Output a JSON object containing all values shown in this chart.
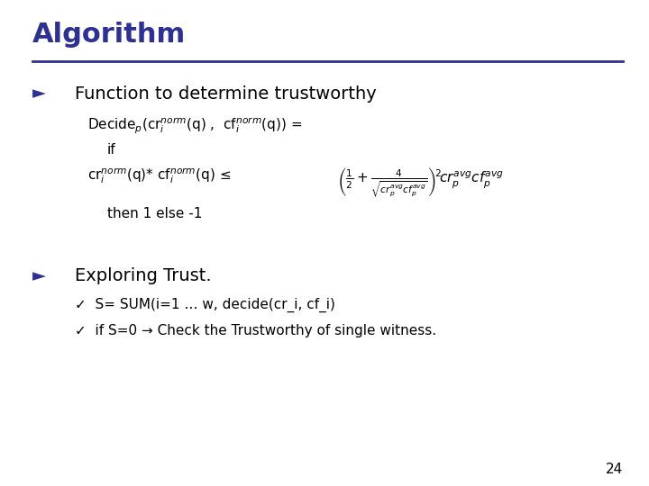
{
  "title": "Algorithm",
  "title_color": "#2E3191",
  "title_fontsize": 22,
  "separator_color": "#2E3191",
  "background_color": "#FFFFFF",
  "bullet1_header": "Function to determine trustworthy",
  "bullet1_fontsize": 14,
  "bullet_marker_color": "#2E3191",
  "bullet_marker": "►",
  "decide_line": "Decide$_p$(cr$_i^{norm}$(q) ,  cf$_i^{norm}$(q)) =",
  "if_line": "if",
  "condition_line": "cr$_i^{norm}$(q)* cf$_i^{norm}$(q) ≤",
  "formula_text": "$\\left(\\frac{1}{2}+\\frac{4}{\\sqrt{cr_p^{avg}cf_p^{avg}}}\\right)^{\\!2}\\!cr_p^{avg}cf_p^{avg}$",
  "then_line": "then 1 else -1",
  "bullet2_header": "Exploring Trust.",
  "bullet2_fontsize": 14,
  "sub1": "✓  S= SUM(i=1 … w, decide(cr_i, cf_i)",
  "sub2": "✓  if S=0 → Check the Trustworthy of single witness.",
  "sub_fontsize": 11,
  "page_number": "24",
  "content_fontsize": 11,
  "formula_fontsize": 11
}
